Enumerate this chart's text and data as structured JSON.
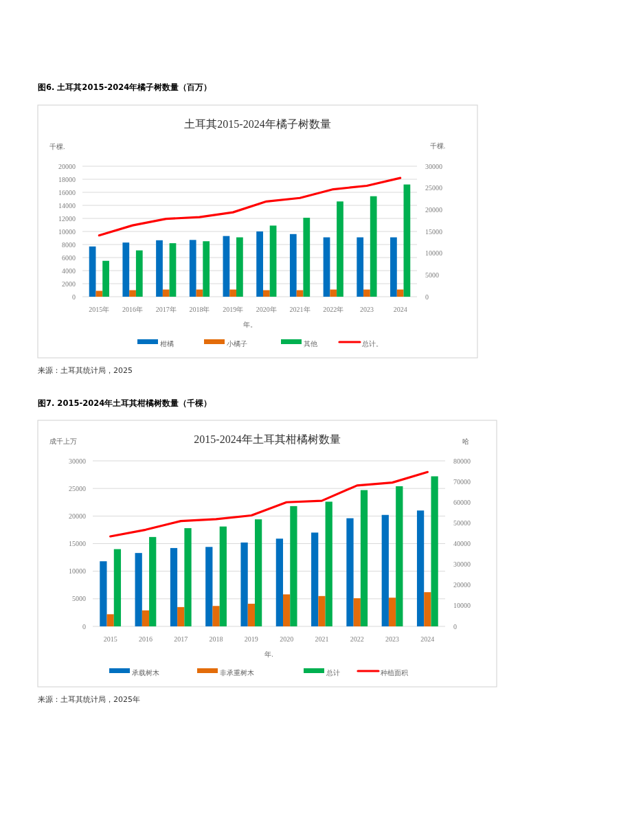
{
  "chart_data": [
    {
      "type": "bar",
      "subtitle": "图6. 土耳其2015-2024年橘子树数量（百万）",
      "title": "土耳其2015-2024年橘子树数量",
      "ylabel": "千棵.",
      "y2label": "千棵.",
      "xlabel": "年。",
      "categories": [
        "2015年",
        "2016年",
        "2017年",
        "2018年",
        "2019年",
        "2020年",
        "2021年",
        "2022年",
        "2023",
        "2024"
      ],
      "series": [
        {
          "name": "柑橘",
          "color": "#0070c0",
          "values": [
            7700,
            8300,
            8650,
            8700,
            9300,
            10000,
            9600,
            9100,
            9100,
            9100
          ]
        },
        {
          "name": "小橘子",
          "color": "#e36c0a",
          "values": [
            900,
            1000,
            1100,
            1100,
            1100,
            1000,
            1000,
            1100,
            1100,
            1100
          ]
        },
        {
          "name": "其他",
          "color": "#00b050",
          "values": [
            5500,
            7100,
            8200,
            8500,
            9100,
            10900,
            12100,
            14600,
            15400,
            17200
          ]
        },
        {
          "name": "总计。",
          "color": "#ff0000",
          "type": "line",
          "axis": "y2",
          "values": [
            14100,
            16400,
            17900,
            18300,
            19400,
            21900,
            22700,
            24700,
            25500,
            27300
          ]
        }
      ],
      "ylim": [
        0,
        20000
      ],
      "yticks": [
        0,
        2000,
        4000,
        6000,
        8000,
        10000,
        12000,
        14000,
        16000,
        18000,
        20000
      ],
      "y2lim": [
        0,
        30000
      ],
      "y2ticks": [
        0,
        5000,
        10000,
        15000,
        20000,
        25000,
        30000
      ],
      "grid": "y",
      "legend": "bottom",
      "annotations": [
        "来源：土耳其统计局，2025"
      ]
    },
    {
      "type": "bar",
      "subtitle": "图7. 2015-2024年土耳其柑橘树数量（千棵）",
      "title": "2015-2024年土耳其柑橘树数量",
      "ylabel": "成千上万",
      "y2label": "哈",
      "xlabel": "年.",
      "categories": [
        "2015",
        "2016",
        "2017",
        "2018",
        "2019",
        "2020",
        "2021",
        "2022",
        "2023",
        "2024"
      ],
      "series": [
        {
          "name": "承载树木",
          "color": "#0070c0",
          "values": [
            11800,
            13300,
            14200,
            14400,
            15200,
            15900,
            17000,
            19600,
            20200,
            21000
          ]
        },
        {
          "name": "非承重树木",
          "color": "#e36c0a",
          "values": [
            2200,
            2900,
            3500,
            3700,
            4100,
            5800,
            5500,
            5100,
            5200,
            6200
          ]
        },
        {
          "name": "总计",
          "color": "#00b050",
          "values": [
            14000,
            16200,
            17800,
            18100,
            19400,
            21800,
            22600,
            24700,
            25400,
            27200
          ]
        },
        {
          "name": "种植面积",
          "color": "#ff0000",
          "type": "line",
          "axis": "y2",
          "values": [
            43500,
            46700,
            50900,
            51800,
            53600,
            60000,
            60700,
            68100,
            69500,
            74600
          ]
        }
      ],
      "ylim": [
        0,
        30000
      ],
      "yticks": [
        0,
        5000,
        10000,
        15000,
        20000,
        25000,
        30000
      ],
      "y2lim": [
        0,
        80000
      ],
      "y2ticks": [
        0,
        10000,
        20000,
        30000,
        40000,
        50000,
        60000,
        70000,
        80000
      ],
      "grid": "y",
      "legend": "bottom",
      "annotations": [
        "来源：土耳其统计局，2025年"
      ]
    }
  ]
}
